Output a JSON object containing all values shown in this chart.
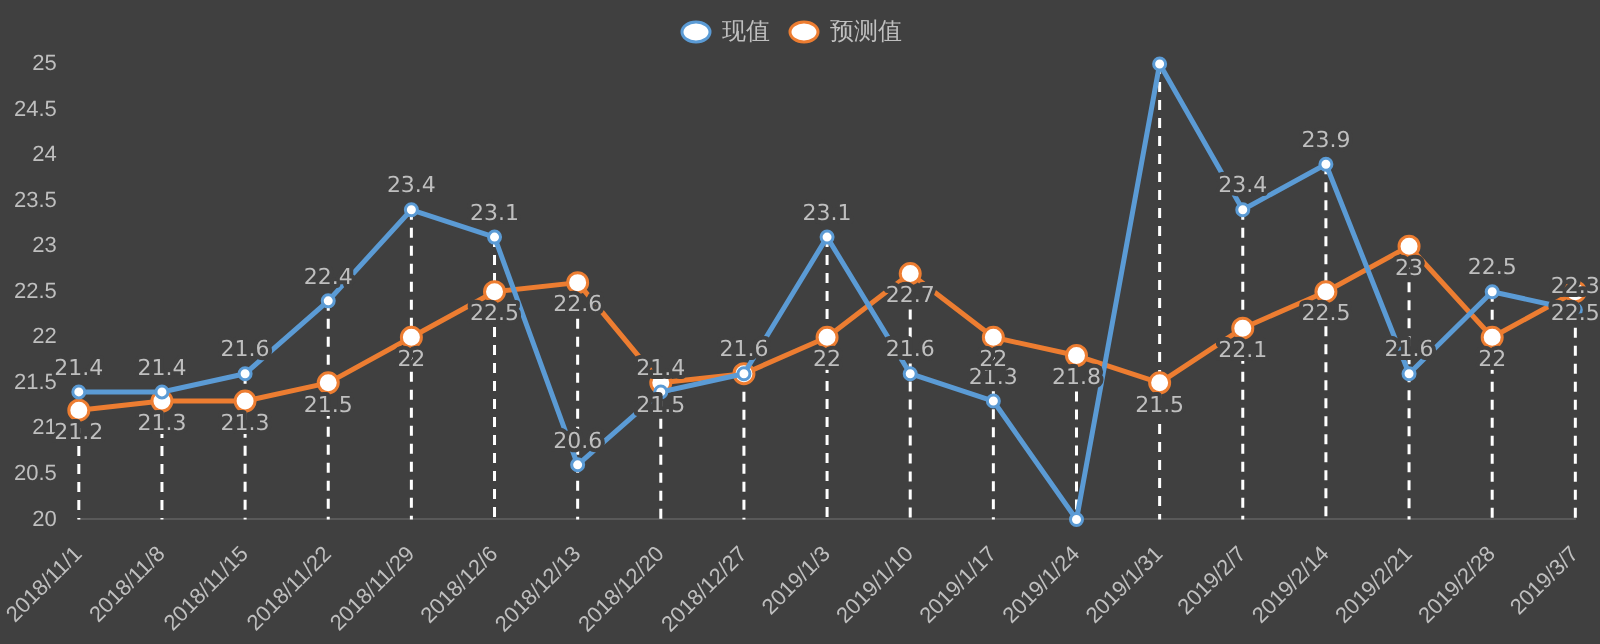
{
  "chart_data": {
    "type": "line",
    "categories": [
      "2018/11/1",
      "2018/11/8",
      "2018/11/15",
      "2018/11/22",
      "2018/11/29",
      "2018/12/6",
      "2018/12/13",
      "2018/12/20",
      "2018/12/27",
      "2019/1/3",
      "2019/1/10",
      "2019/1/17",
      "2019/1/24",
      "2019/1/31",
      "2019/2/7",
      "2019/2/14",
      "2019/2/21",
      "2019/2/28",
      "2019/3/7"
    ],
    "series": [
      {
        "name": "现值",
        "color": "#5b9bd5",
        "values": [
          21.4,
          21.4,
          21.6,
          22.4,
          23.4,
          23.1,
          20.6,
          21.4,
          21.6,
          23.1,
          21.6,
          21.3,
          20,
          25,
          23.4,
          23.9,
          21.6,
          22.5,
          22.3
        ],
        "value_labels": [
          "21.4",
          "21.4",
          "21.6",
          "22.4",
          "23.4",
          "23.1",
          "20.6",
          "21.4",
          "21.6",
          "23.1",
          "21.6",
          "21.3",
          null,
          null,
          "23.4",
          "23.9",
          "21.6",
          "22.5",
          "22.3"
        ]
      },
      {
        "name": "预测值",
        "color": "#ed7d31",
        "values": [
          21.2,
          21.3,
          21.3,
          21.5,
          22,
          22.5,
          22.6,
          21.5,
          21.6,
          22,
          22.7,
          22,
          21.8,
          21.5,
          22.1,
          22.5,
          23,
          22,
          22.5
        ],
        "value_labels": [
          "21.2",
          "21.3",
          "21.3",
          "21.5",
          "22",
          "22.5",
          "22.6",
          "21.5",
          null,
          "22",
          "22.7",
          "22",
          "21.8",
          "21.5",
          "22.1",
          "22.5",
          "23",
          "22",
          "22.5"
        ]
      }
    ],
    "ylim": [
      20,
      25
    ],
    "yticks": [
      20,
      20.5,
      21,
      21.5,
      22,
      22.5,
      23,
      23.5,
      24,
      24.5,
      25
    ],
    "grid": "x",
    "legend": "top",
    "marker": "circle",
    "line_style": "solid"
  }
}
